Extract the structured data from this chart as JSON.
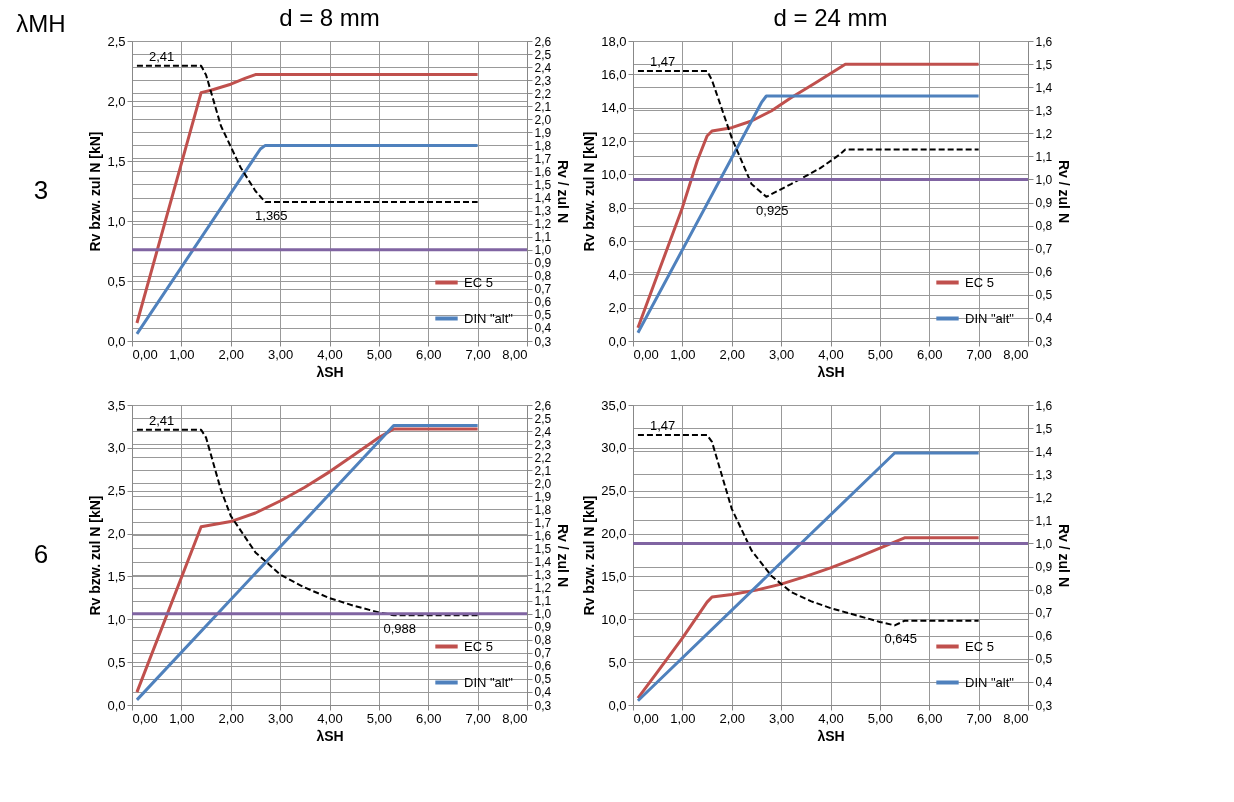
{
  "chart_data": [
    {
      "type": "other",
      "annotations": [
        "λMH",
        "3",
        "6"
      ]
    },
    {
      "type": "line",
      "title": "d = 8 mm",
      "xlabel": "λSH",
      "ylabel": "Rv bzw. zul N [kN]",
      "y2label": "Rv / zul N",
      "xlim": [
        0,
        8
      ],
      "xticks": [
        {
          "value": 0,
          "label": "0,00"
        },
        {
          "value": 1,
          "label": "1,00"
        },
        {
          "value": 2,
          "label": "2,00"
        },
        {
          "value": 3,
          "label": "3,00"
        },
        {
          "value": 4,
          "label": "4,00"
        },
        {
          "value": 5,
          "label": "5,00"
        },
        {
          "value": 6,
          "label": "6,00"
        },
        {
          "value": 7,
          "label": "7,00"
        },
        {
          "value": 8,
          "label": "8,00"
        }
      ],
      "ylim": [
        0,
        2.5
      ],
      "yticks": [
        {
          "value": 0,
          "label": "0,0"
        },
        {
          "value": 0.5,
          "label": "0,5"
        },
        {
          "value": 1.0,
          "label": "1,0"
        },
        {
          "value": 1.5,
          "label": "1,5"
        },
        {
          "value": 2.0,
          "label": "2,0"
        },
        {
          "value": 2.5,
          "label": "2,5"
        }
      ],
      "y2lim": [
        0.3,
        2.6
      ],
      "y2ticks": [
        {
          "value": 0.3,
          "label": "0,3"
        },
        {
          "value": 0.4,
          "label": "0,4"
        },
        {
          "value": 0.5,
          "label": "0,5"
        },
        {
          "value": 0.6,
          "label": "0,6"
        },
        {
          "value": 0.7,
          "label": "0,7"
        },
        {
          "value": 0.8,
          "label": "0,8"
        },
        {
          "value": 0.9,
          "label": "0,9"
        },
        {
          "value": 1.0,
          "label": "1,0"
        },
        {
          "value": 1.1,
          "label": "1,1"
        },
        {
          "value": 1.2,
          "label": "1,2"
        },
        {
          "value": 1.3,
          "label": "1,3"
        },
        {
          "value": 1.4,
          "label": "1,4"
        },
        {
          "value": 1.5,
          "label": "1,5"
        },
        {
          "value": 1.6,
          "label": "1,6"
        },
        {
          "value": 1.7,
          "label": "1,7"
        },
        {
          "value": 1.8,
          "label": "1,8"
        },
        {
          "value": 1.9,
          "label": "1,9"
        },
        {
          "value": 2.0,
          "label": "2,0"
        },
        {
          "value": 2.1,
          "label": "2,1"
        },
        {
          "value": 2.2,
          "label": "2,2"
        },
        {
          "value": 2.3,
          "label": "2,3"
        },
        {
          "value": 2.4,
          "label": "2,4"
        },
        {
          "value": 2.5,
          "label": "2,5"
        },
        {
          "value": 2.6,
          "label": "2,6"
        }
      ],
      "grid": true,
      "legend": "bottom right",
      "series": [
        {
          "name": "EC 5",
          "color": "#c0504d",
          "x": [
            0.1,
            1.4,
            1.6,
            2.0,
            2.3,
            2.5,
            7.0
          ],
          "values": [
            0.15,
            2.07,
            2.09,
            2.14,
            2.19,
            2.22,
            2.22
          ]
        },
        {
          "name": "DIN \"alt\"",
          "color": "#4f81bd",
          "x": [
            0.1,
            2.6,
            2.7,
            7.0
          ],
          "values": [
            0.06,
            1.6,
            1.63,
            1.63
          ]
        },
        {
          "color": "#000000",
          "axis": "y2",
          "line_style": "dashed",
          "x": [
            0.1,
            1.4,
            1.5,
            1.8,
            2.2,
            2.5,
            2.7,
            7.0
          ],
          "values": [
            2.41,
            2.41,
            2.34,
            1.95,
            1.63,
            1.45,
            1.365,
            1.365
          ]
        }
      ],
      "ref_lines": [
        {
          "axis": "y2",
          "value": 1.0,
          "color": "#8064a2"
        }
      ],
      "annotations": [
        "2,41",
        "1,365"
      ]
    },
    {
      "type": "line",
      "title": "d = 24 mm",
      "xlabel": "λSH",
      "ylabel": "Rv bzw. zul N [kN]",
      "y2label": "Rv / zul N",
      "xlim": [
        0,
        8
      ],
      "xticks": [
        {
          "value": 0,
          "label": "0,00"
        },
        {
          "value": 1,
          "label": "1,00"
        },
        {
          "value": 2,
          "label": "2,00"
        },
        {
          "value": 3,
          "label": "3,00"
        },
        {
          "value": 4,
          "label": "4,00"
        },
        {
          "value": 5,
          "label": "5,00"
        },
        {
          "value": 6,
          "label": "6,00"
        },
        {
          "value": 7,
          "label": "7,00"
        },
        {
          "value": 8,
          "label": "8,00"
        }
      ],
      "ylim": [
        0,
        18
      ],
      "yticks": [
        {
          "value": 0,
          "label": "0,0"
        },
        {
          "value": 2,
          "label": "2,0"
        },
        {
          "value": 4,
          "label": "4,0"
        },
        {
          "value": 6,
          "label": "6,0"
        },
        {
          "value": 8,
          "label": "8,0"
        },
        {
          "value": 10,
          "label": "10,0"
        },
        {
          "value": 12,
          "label": "12,0"
        },
        {
          "value": 14,
          "label": "14,0"
        },
        {
          "value": 16,
          "label": "16,0"
        },
        {
          "value": 18,
          "label": "18,0"
        }
      ],
      "y2lim": [
        0.3,
        1.6
      ],
      "y2ticks": [
        {
          "value": 0.3,
          "label": "0,3"
        },
        {
          "value": 0.4,
          "label": "0,4"
        },
        {
          "value": 0.5,
          "label": "0,5"
        },
        {
          "value": 0.6,
          "label": "0,6"
        },
        {
          "value": 0.7,
          "label": "0,7"
        },
        {
          "value": 0.8,
          "label": "0,8"
        },
        {
          "value": 0.9,
          "label": "0,9"
        },
        {
          "value": 1.0,
          "label": "1,0"
        },
        {
          "value": 1.1,
          "label": "1,1"
        },
        {
          "value": 1.2,
          "label": "1,2"
        },
        {
          "value": 1.3,
          "label": "1,3"
        },
        {
          "value": 1.4,
          "label": "1,4"
        },
        {
          "value": 1.5,
          "label": "1,5"
        },
        {
          "value": 1.6,
          "label": "1,6"
        }
      ],
      "grid": true,
      "legend": "bottom right",
      "series": [
        {
          "name": "EC 5",
          "color": "#c0504d",
          "x": [
            0.1,
            0.5,
            1.0,
            1.3,
            1.5,
            1.6,
            2.0,
            2.4,
            2.8,
            3.2,
            3.7,
            4.3,
            7.0
          ],
          "values": [
            0.8,
            4.0,
            8.0,
            10.8,
            12.3,
            12.6,
            12.8,
            13.2,
            13.8,
            14.6,
            15.5,
            16.6,
            16.6
          ]
        },
        {
          "name": "DIN \"alt\"",
          "color": "#4f81bd",
          "x": [
            0.1,
            2.6,
            2.7,
            7.0
          ],
          "values": [
            0.5,
            14.3,
            14.7,
            14.7
          ]
        },
        {
          "color": "#000000",
          "axis": "y2",
          "line_style": "dashed",
          "x": [
            0.1,
            1.5,
            1.6,
            2.0,
            2.4,
            2.7,
            3.2,
            3.8,
            4.2,
            4.3,
            7.0
          ],
          "values": [
            1.47,
            1.47,
            1.43,
            1.18,
            0.98,
            0.925,
            0.98,
            1.05,
            1.11,
            1.13,
            1.13
          ]
        }
      ],
      "ref_lines": [
        {
          "axis": "y2",
          "value": 1.0,
          "color": "#8064a2"
        }
      ],
      "annotations": [
        "1,47",
        "0,925"
      ]
    },
    {
      "type": "line",
      "xlabel": "λSH",
      "ylabel": "Rv bzw. zul N [kN]",
      "y2label": "Rv / zul N",
      "xlim": [
        0,
        8
      ],
      "xticks": [
        {
          "value": 0,
          "label": "0,00"
        },
        {
          "value": 1,
          "label": "1,00"
        },
        {
          "value": 2,
          "label": "2,00"
        },
        {
          "value": 3,
          "label": "3,00"
        },
        {
          "value": 4,
          "label": "4,00"
        },
        {
          "value": 5,
          "label": "5,00"
        },
        {
          "value": 6,
          "label": "6,00"
        },
        {
          "value": 7,
          "label": "7,00"
        },
        {
          "value": 8,
          "label": "8,00"
        }
      ],
      "ylim": [
        0,
        3.5
      ],
      "yticks": [
        {
          "value": 0,
          "label": "0,0"
        },
        {
          "value": 0.5,
          "label": "0,5"
        },
        {
          "value": 1.0,
          "label": "1,0"
        },
        {
          "value": 1.5,
          "label": "1,5"
        },
        {
          "value": 2.0,
          "label": "2,0"
        },
        {
          "value": 2.5,
          "label": "2,5"
        },
        {
          "value": 3.0,
          "label": "3,0"
        },
        {
          "value": 3.5,
          "label": "3,5"
        }
      ],
      "y2lim": [
        0.3,
        2.6
      ],
      "y2ticks": [
        {
          "value": 0.3,
          "label": "0,3"
        },
        {
          "value": 0.4,
          "label": "0,4"
        },
        {
          "value": 0.5,
          "label": "0,5"
        },
        {
          "value": 0.6,
          "label": "0,6"
        },
        {
          "value": 0.7,
          "label": "0,7"
        },
        {
          "value": 0.8,
          "label": "0,8"
        },
        {
          "value": 0.9,
          "label": "0,9"
        },
        {
          "value": 1.0,
          "label": "1,0"
        },
        {
          "value": 1.1,
          "label": "1,1"
        },
        {
          "value": 1.2,
          "label": "1,2"
        },
        {
          "value": 1.3,
          "label": "1,3"
        },
        {
          "value": 1.4,
          "label": "1,4"
        },
        {
          "value": 1.5,
          "label": "1,5"
        },
        {
          "value": 1.6,
          "label": "1,6"
        },
        {
          "value": 1.7,
          "label": "1,7"
        },
        {
          "value": 1.8,
          "label": "1,8"
        },
        {
          "value": 1.9,
          "label": "1,9"
        },
        {
          "value": 2.0,
          "label": "2,0"
        },
        {
          "value": 2.1,
          "label": "2,1"
        },
        {
          "value": 2.2,
          "label": "2,2"
        },
        {
          "value": 2.3,
          "label": "2,3"
        },
        {
          "value": 2.4,
          "label": "2,4"
        },
        {
          "value": 2.5,
          "label": "2,5"
        },
        {
          "value": 2.6,
          "label": "2,6"
        }
      ],
      "grid": true,
      "legend": "bottom right",
      "series": [
        {
          "name": "EC 5",
          "color": "#c0504d",
          "x": [
            0.1,
            1.4,
            2.0,
            2.5,
            3.0,
            3.5,
            4.0,
            4.5,
            5.0,
            5.3,
            7.0
          ],
          "values": [
            0.15,
            2.08,
            2.14,
            2.24,
            2.38,
            2.54,
            2.72,
            2.92,
            3.12,
            3.22,
            3.22
          ]
        },
        {
          "name": "DIN \"alt\"",
          "color": "#4f81bd",
          "x": [
            0.1,
            5.3,
            7.0
          ],
          "values": [
            0.06,
            3.26,
            3.26
          ]
        },
        {
          "color": "#000000",
          "axis": "y2",
          "line_style": "dashed",
          "x": [
            0.1,
            1.4,
            1.5,
            1.8,
            2.0,
            2.5,
            3.0,
            3.5,
            4.0,
            4.5,
            5.0,
            5.3,
            7.0
          ],
          "values": [
            2.41,
            2.41,
            2.35,
            1.95,
            1.75,
            1.47,
            1.3,
            1.2,
            1.12,
            1.06,
            1.01,
            0.988,
            0.988
          ]
        }
      ],
      "ref_lines": [
        {
          "axis": "y2",
          "value": 1.0,
          "color": "#8064a2"
        }
      ],
      "annotations": [
        "2,41",
        "0,988"
      ]
    },
    {
      "type": "line",
      "xlabel": "λSH",
      "ylabel": "Rv bzw. zul N [kN]",
      "y2label": "Rv / zul N",
      "xlim": [
        0,
        8
      ],
      "xticks": [
        {
          "value": 0,
          "label": "0,00"
        },
        {
          "value": 1,
          "label": "1,00"
        },
        {
          "value": 2,
          "label": "2,00"
        },
        {
          "value": 3,
          "label": "3,00"
        },
        {
          "value": 4,
          "label": "4,00"
        },
        {
          "value": 5,
          "label": "5,00"
        },
        {
          "value": 6,
          "label": "6,00"
        },
        {
          "value": 7,
          "label": "7,00"
        },
        {
          "value": 8,
          "label": "8,00"
        }
      ],
      "ylim": [
        0,
        35
      ],
      "yticks": [
        {
          "value": 0,
          "label": "0,0"
        },
        {
          "value": 5,
          "label": "5,0"
        },
        {
          "value": 10,
          "label": "10,0"
        },
        {
          "value": 15,
          "label": "15,0"
        },
        {
          "value": 20,
          "label": "20,0"
        },
        {
          "value": 25,
          "label": "25,0"
        },
        {
          "value": 30,
          "label": "30,0"
        },
        {
          "value": 35,
          "label": "35,0"
        }
      ],
      "y2lim": [
        0.3,
        1.6
      ],
      "y2ticks": [
        {
          "value": 0.3,
          "label": "0,3"
        },
        {
          "value": 0.4,
          "label": "0,4"
        },
        {
          "value": 0.5,
          "label": "0,5"
        },
        {
          "value": 0.6,
          "label": "0,6"
        },
        {
          "value": 0.7,
          "label": "0,7"
        },
        {
          "value": 0.8,
          "label": "0,8"
        },
        {
          "value": 0.9,
          "label": "0,9"
        },
        {
          "value": 1.0,
          "label": "1,0"
        },
        {
          "value": 1.1,
          "label": "1,1"
        },
        {
          "value": 1.2,
          "label": "1,2"
        },
        {
          "value": 1.3,
          "label": "1,3"
        },
        {
          "value": 1.4,
          "label": "1,4"
        },
        {
          "value": 1.5,
          "label": "1,5"
        },
        {
          "value": 1.6,
          "label": "1,6"
        }
      ],
      "grid": true,
      "legend": "bottom right",
      "series": [
        {
          "name": "EC 5",
          "color": "#c0504d",
          "x": [
            0.1,
            0.5,
            1.0,
            1.5,
            1.6,
            2.0,
            2.5,
            3.0,
            3.5,
            4.0,
            4.5,
            5.0,
            5.5,
            7.0
          ],
          "values": [
            0.8,
            3.9,
            7.8,
            12.0,
            12.6,
            12.9,
            13.4,
            14.1,
            15.0,
            16.0,
            17.1,
            18.3,
            19.5,
            19.5
          ]
        },
        {
          "name": "DIN \"alt\"",
          "color": "#4f81bd",
          "x": [
            0.1,
            5.3,
            7.0
          ],
          "values": [
            0.5,
            29.4,
            29.4
          ]
        },
        {
          "color": "#000000",
          "axis": "y2",
          "line_style": "dashed",
          "x": [
            0.1,
            1.5,
            1.6,
            2.0,
            2.4,
            2.8,
            3.2,
            3.6,
            4.0,
            4.5,
            5.0,
            5.3,
            5.5,
            7.0
          ],
          "values": [
            1.47,
            1.47,
            1.44,
            1.15,
            0.97,
            0.86,
            0.79,
            0.75,
            0.72,
            0.69,
            0.66,
            0.645,
            0.665,
            0.665
          ]
        }
      ],
      "ref_lines": [
        {
          "axis": "y2",
          "value": 1.0,
          "color": "#8064a2"
        }
      ],
      "annotations": [
        "1,47",
        "0,645"
      ]
    }
  ]
}
